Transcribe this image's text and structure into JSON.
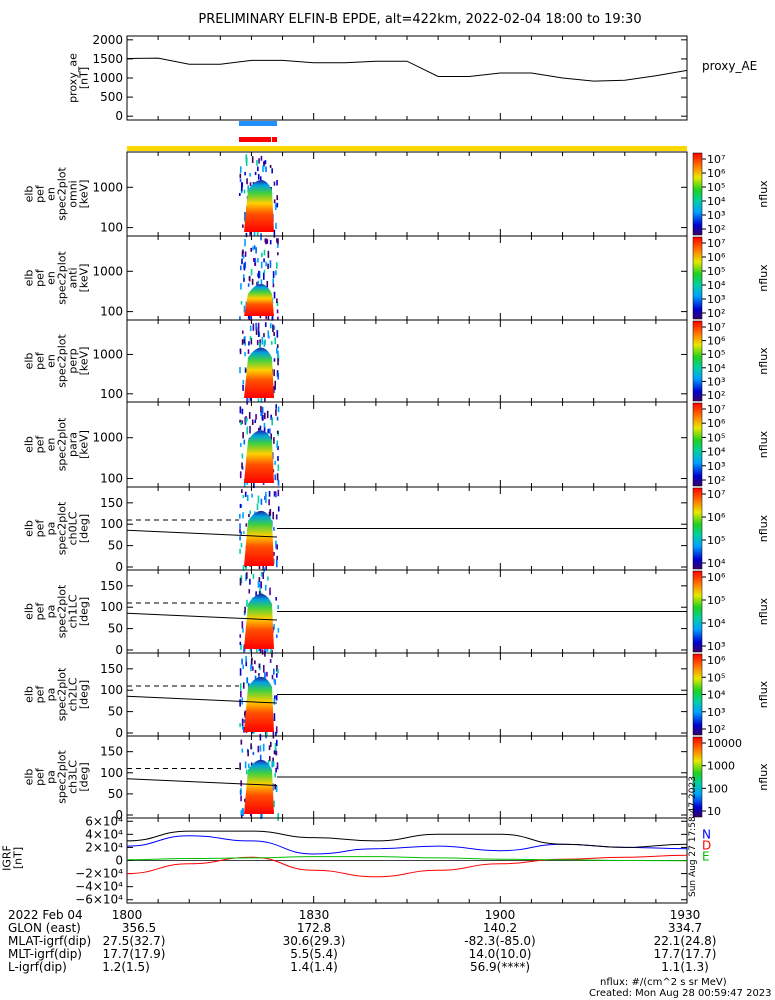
{
  "title": "PRELIMINARY ELFIN-B EPDE, alt=422km, 2022-02-04 18:00 to 19:30",
  "chart_data": [
    {
      "type": "line",
      "id": "proxy_ae",
      "ylabel": [
        "proxy_ae",
        "[nT]"
      ],
      "legend": "proxy_AE",
      "ylim": [
        -100,
        2100
      ],
      "yticks": [
        "2000",
        "1500",
        "1000",
        "500",
        "0"
      ],
      "x": [
        0,
        5,
        10,
        15,
        20,
        25,
        30,
        35,
        40,
        45,
        50,
        55,
        60,
        65,
        70,
        75,
        80,
        85,
        90
      ],
      "values": [
        1510,
        1520,
        1360,
        1360,
        1460,
        1460,
        1400,
        1400,
        1440,
        1440,
        1040,
        1040,
        1130,
        1130,
        1000,
        920,
        940,
        1060,
        1200
      ]
    },
    {
      "type": "heatmap",
      "id": "en_omni",
      "ylabel": [
        "elb",
        "pef",
        "en",
        "spec2plot",
        "omni",
        "[keV]"
      ],
      "yticks": [
        "1000",
        "100"
      ],
      "colorbar": {
        "label": "nflux",
        "ticks": [
          "10⁷",
          "10⁶",
          "10⁵",
          "10⁴",
          "10³",
          "10²"
        ]
      }
    },
    {
      "type": "heatmap",
      "id": "en_anti",
      "ylabel": [
        "elb",
        "pef",
        "en",
        "spec2plot",
        "anti",
        "[keV]"
      ],
      "yticks": [
        "1000",
        "100"
      ],
      "colorbar": {
        "label": "nflux",
        "ticks": [
          "10⁷",
          "10⁶",
          "10⁵",
          "10⁴",
          "10³",
          "10²"
        ]
      }
    },
    {
      "type": "heatmap",
      "id": "en_perp",
      "ylabel": [
        "elb",
        "pef",
        "en",
        "spec2plot",
        "perp",
        "[keV]"
      ],
      "yticks": [
        "1000",
        "100"
      ],
      "colorbar": {
        "label": "nflux",
        "ticks": [
          "10⁷",
          "10⁶",
          "10⁵",
          "10⁴",
          "10³",
          "10²"
        ]
      }
    },
    {
      "type": "heatmap",
      "id": "en_para",
      "ylabel": [
        "elb",
        "pef",
        "en",
        "spec2plot",
        "para",
        "[keV]"
      ],
      "yticks": [
        "1000",
        "100"
      ],
      "colorbar": {
        "label": "nflux",
        "ticks": [
          "10⁷",
          "10⁶",
          "10⁵",
          "10⁴",
          "10³",
          "10²"
        ]
      }
    },
    {
      "type": "heatmap",
      "id": "pa_ch0",
      "ylabel": [
        "elb",
        "pef",
        "pa",
        "spec2plot",
        "ch0LC",
        "[deg]"
      ],
      "yticks": [
        "150",
        "100",
        "50",
        "0"
      ],
      "ylim": [
        0,
        180
      ],
      "colorbar": {
        "label": "nflux",
        "ticks": [
          "10⁷",
          "10⁶",
          "10⁵",
          "10⁴"
        ]
      }
    },
    {
      "type": "heatmap",
      "id": "pa_ch1",
      "ylabel": [
        "elb",
        "pef",
        "pa",
        "spec2plot",
        "ch1LC",
        "[deg]"
      ],
      "yticks": [
        "150",
        "100",
        "50",
        "0"
      ],
      "ylim": [
        0,
        180
      ],
      "colorbar": {
        "label": "nflux",
        "ticks": [
          "10⁶",
          "10⁵",
          "10⁴",
          "10³"
        ]
      }
    },
    {
      "type": "heatmap",
      "id": "pa_ch2",
      "ylabel": [
        "elb",
        "pef",
        "pa",
        "spec2plot",
        "ch2LC",
        "[deg]"
      ],
      "yticks": [
        "150",
        "100",
        "50",
        "0"
      ],
      "ylim": [
        0,
        180
      ],
      "colorbar": {
        "label": "nflux",
        "ticks": [
          "10⁶",
          "10⁵",
          "10⁴",
          "10³",
          "10²"
        ]
      }
    },
    {
      "type": "heatmap",
      "id": "pa_ch3",
      "ylabel": [
        "elb",
        "pef",
        "pa",
        "spec2plot",
        "ch3LC",
        "[deg]"
      ],
      "yticks": [
        "150",
        "100",
        "50",
        "0"
      ],
      "ylim": [
        0,
        180
      ],
      "colorbar": {
        "label": "nflux",
        "ticks": [
          "10000",
          "1000",
          "100",
          "10"
        ]
      }
    },
    {
      "type": "line",
      "id": "igrf",
      "ylabel": [
        "IGRF",
        "[nT]"
      ],
      "ylim": [
        -65000,
        65000
      ],
      "yticks": [
        "6×10⁴",
        "4×10⁴",
        "2×10⁴",
        "0",
        "−2×10⁴",
        "−4×10⁴",
        "−6×10⁴"
      ],
      "x": [
        0,
        10,
        20,
        30,
        40,
        50,
        60,
        70,
        80,
        90
      ],
      "series": [
        {
          "name": "N",
          "color": "#0000ff",
          "values": [
            22000,
            38000,
            30000,
            10000,
            18000,
            22000,
            15000,
            25000,
            20000,
            18000
          ]
        },
        {
          "name": "D",
          "color": "#ff0000",
          "values": [
            -20000,
            -5000,
            5000,
            -15000,
            -25000,
            -15000,
            -5000,
            2000,
            5000,
            8000
          ]
        },
        {
          "name": "E",
          "color": "#00c000",
          "values": [
            1000,
            3000,
            4000,
            6000,
            6000,
            4000,
            2000,
            1000,
            0,
            -500
          ]
        },
        {
          "color": "#000000",
          "values": [
            30000,
            45000,
            45000,
            35000,
            30000,
            40000,
            40000,
            25000,
            20000,
            25000
          ]
        }
      ]
    }
  ],
  "xaxis": {
    "date": "2022 Feb 04",
    "times": [
      "1800",
      "1830",
      "1900",
      "1930"
    ],
    "rows": [
      {
        "label": "GLON (east)",
        "values": [
          "356.5",
          "172.8",
          "140.2",
          "334.7"
        ]
      },
      {
        "label": "MLAT-igrf(dip)",
        "values": [
          "27.5(32.7)",
          "30.6(29.3)",
          "-82.3(-85.0)",
          "22.1(24.8)"
        ]
      },
      {
        "label": "MLT-igrf(dip)",
        "values": [
          "17.7(17.9)",
          "5.5(5.4)",
          "14.0(10.0)",
          "17.7(17.7)"
        ]
      },
      {
        "label": "L-igrf(dip)",
        "values": [
          "1.2(1.5)",
          "1.4(1.4)",
          "56.9(****)",
          "1.1(1.3)"
        ]
      }
    ]
  },
  "footer": {
    "units": "nflux: #/(cm^2 s sr MeV)",
    "created": "Created: Mon Aug 28 00:59:47 2023",
    "side_stamp": "Sun Aug 27 17:58:47 2023"
  },
  "colors": {
    "blue_bar": "#1e90ff",
    "red_bar": "#ff0000",
    "yellow_bar": "#ffd700"
  }
}
